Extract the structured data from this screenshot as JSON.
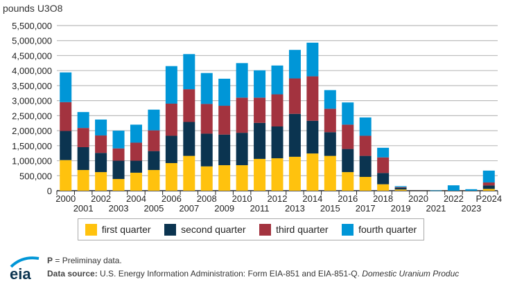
{
  "chart_data": {
    "type": "bar",
    "stacked": true,
    "ylabel": "pounds U3O8",
    "ylim": [
      0,
      5500000
    ],
    "yticks": [
      "0",
      "500,000",
      "1,000,000",
      "1,500,000",
      "2,000,000",
      "2,500,000",
      "3,000,000",
      "3,500,000",
      "4,000,000",
      "4,500,000",
      "5,000,000",
      "5,500,000"
    ],
    "grid": true,
    "legend_position": "bottom",
    "categories": [
      "2000",
      "2001",
      "2002",
      "2003",
      "2004",
      "2005",
      "2006",
      "2007",
      "2008",
      "2009",
      "2010",
      "2011",
      "2012",
      "2013",
      "2014",
      "2015",
      "2016",
      "2017",
      "2018",
      "2019",
      "2020",
      "2021",
      "2022",
      "2023",
      "P2024"
    ],
    "series": [
      {
        "name": "first quarter",
        "color": "#FFC20E",
        "values": [
          1020000,
          690000,
          620000,
          390000,
          600000,
          690000,
          920000,
          1160000,
          810000,
          850000,
          850000,
          1060000,
          1080000,
          1130000,
          1240000,
          1160000,
          620000,
          460000,
          215000,
          40000,
          0,
          0,
          0,
          0,
          60000
        ]
      },
      {
        "name": "second quarter",
        "color": "#0B3450",
        "values": [
          970000,
          760000,
          640000,
          610000,
          400000,
          630000,
          910000,
          1130000,
          1090000,
          1020000,
          1080000,
          1200000,
          1060000,
          1430000,
          1090000,
          790000,
          770000,
          700000,
          375000,
          60000,
          0,
          0,
          0,
          0,
          115000
        ]
      },
      {
        "name": "third quarter",
        "color": "#A3333F",
        "values": [
          960000,
          640000,
          580000,
          410000,
          600000,
          690000,
          1070000,
          1090000,
          990000,
          960000,
          1170000,
          840000,
          1070000,
          1180000,
          1480000,
          780000,
          810000,
          670000,
          520000,
          20000,
          0,
          0,
          0,
          0,
          100000
        ]
      },
      {
        "name": "fourth quarter",
        "color": "#0096D7",
        "values": [
          990000,
          530000,
          530000,
          590000,
          600000,
          690000,
          1250000,
          1170000,
          1030000,
          900000,
          1150000,
          910000,
          960000,
          950000,
          1120000,
          620000,
          740000,
          610000,
          320000,
          30000,
          0,
          10000,
          180000,
          50000,
          395000
        ]
      }
    ]
  },
  "footer": {
    "note_bold": "P",
    "note_text": " = Preliminay data.",
    "source_label": "Data source:",
    "source_text": " U.S. Energy Information Administration: Form EIA-851 and EIA-851-Q. ",
    "source_italic": "Domestic Uranium Produc",
    "logo_text": "eia"
  }
}
